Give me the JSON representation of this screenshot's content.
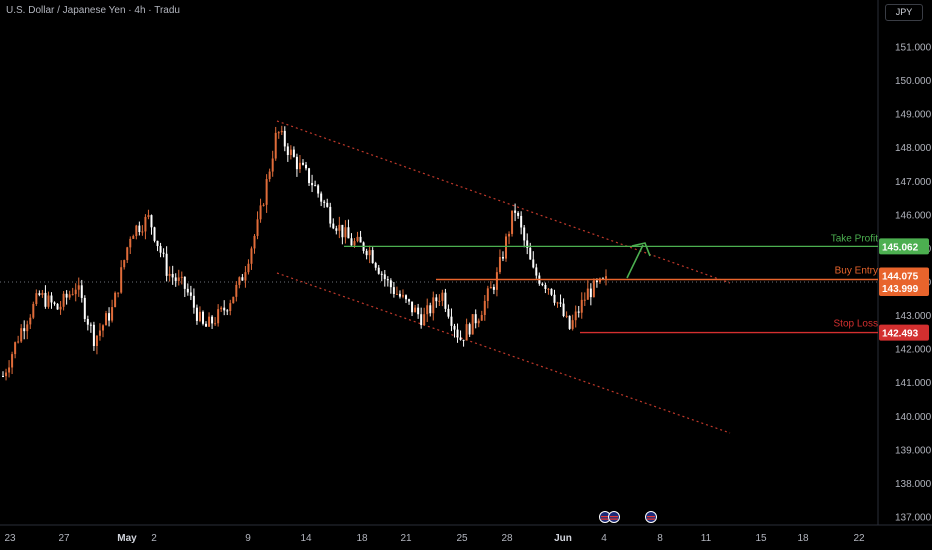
{
  "header": {
    "title": "U.S. Dollar / Japanese Yen · 4h · Tradu"
  },
  "currency": "JPY",
  "colors": {
    "background": "#000000",
    "up_candle": "#e06c3a",
    "down_candle": "#ffffff",
    "channel": "#c0392b",
    "take_profit": "#4caf50",
    "buy_entry": "#e8642c",
    "stop_loss": "#d32f2f",
    "current_price_line": "#6b6f78"
  },
  "chart_data": {
    "type": "candlestick",
    "symbol": "U.S. Dollar / Japanese Yen",
    "interval": "4h",
    "broker": "Tradu",
    "y_ticks": [
      "151.000",
      "150.000",
      "149.000",
      "148.000",
      "147.000",
      "146.000",
      "145.000",
      "144.000",
      "143.000",
      "142.000",
      "141.000",
      "140.000",
      "139.000",
      "138.000",
      "137.000"
    ],
    "y_tick_values": [
      151,
      150,
      149,
      148,
      147,
      146,
      145,
      144,
      143,
      142,
      141,
      140,
      139,
      138,
      137
    ],
    "ylim": [
      136.85,
      151.55
    ],
    "x_ticks": [
      "23",
      "27",
      "May",
      "2",
      "9",
      "14",
      "18",
      "21",
      "25",
      "28",
      "Jun",
      "4",
      "8",
      "11",
      "15",
      "18",
      "22"
    ],
    "bold_x_ticks": [
      "May",
      "Jun"
    ],
    "price_path": [
      141.2,
      142.6,
      143.6,
      143.2,
      143.9,
      142.3,
      143.2,
      145.5,
      145.9,
      144.3,
      143.8,
      142.6,
      143.1,
      144.0,
      145.8,
      148.5,
      147.6,
      146.9,
      145.9,
      145.2,
      145.0,
      144.0,
      143.4,
      142.9,
      143.7,
      142.3,
      143.0,
      144.1,
      146.2,
      144.3,
      143.8,
      142.6,
      143.7,
      144.0
    ],
    "levels": [
      {
        "name": "Take Profit",
        "price": 145.062,
        "label": "145.062"
      },
      {
        "name": "Buy Entry",
        "price": 144.075,
        "label": "144.075"
      },
      {
        "name": "Current Price",
        "price": 143.999,
        "label": "143.999"
      },
      {
        "name": "Stop Loss",
        "price": 142.493,
        "label": "142.493"
      }
    ],
    "annotations": {
      "take_profit_text": "Take Profit",
      "buy_entry_text": "Buy Entry",
      "stop_loss_text": "Stop Loss"
    },
    "event_icons": [
      "flag-icon-us",
      "flag-icon-us",
      "flag-icon-us"
    ]
  }
}
